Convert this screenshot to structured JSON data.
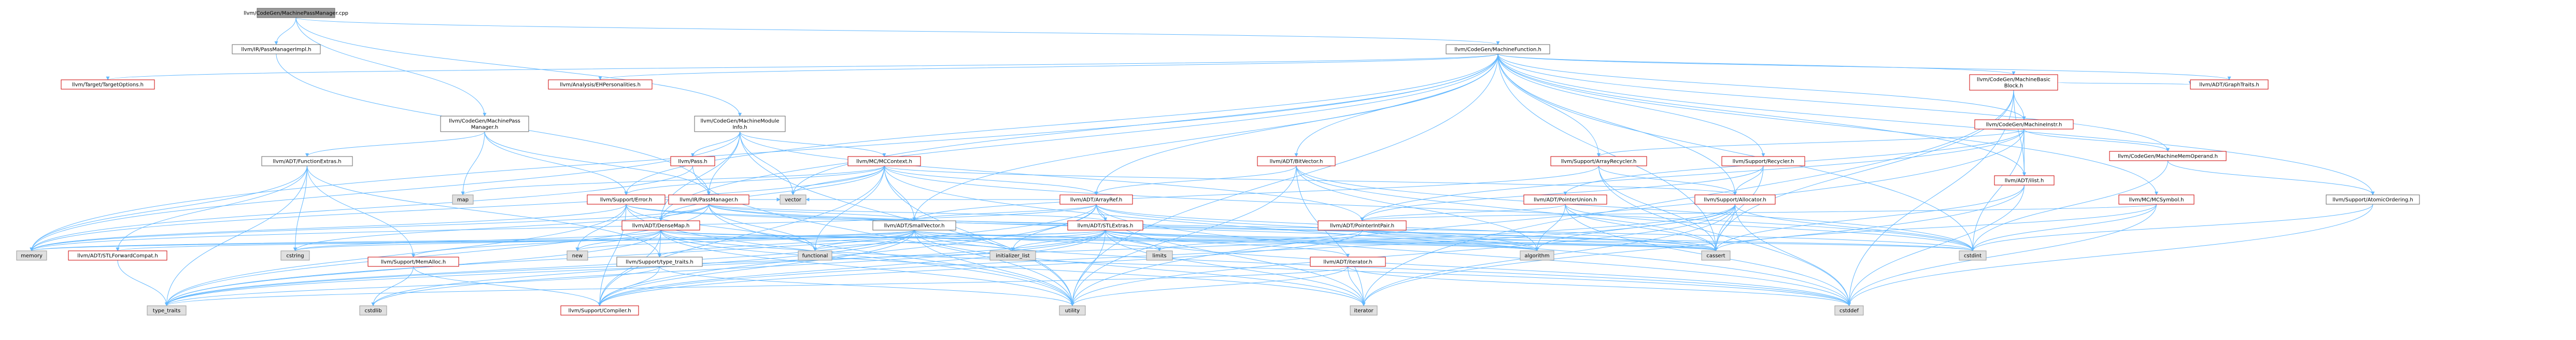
{
  "colors": {
    "root_fill": "#999999",
    "root_border": "#666666",
    "normal_border": "#666666",
    "header_border": "#cc0000",
    "external_fill": "#e0e0e0",
    "external_border": "#999999",
    "edge": "#63b8ff"
  },
  "nodes": [
    {
      "id": "root",
      "label": "llvm/CodeGen/MachinePassManager.cpp",
      "kind": "root"
    },
    {
      "id": "mf",
      "label": "llvm/CodeGen/MachineFunction.h",
      "kind": "normal"
    },
    {
      "id": "irpm_impl",
      "label": "llvm/IR/PassManagerImpl.h",
      "kind": "normal"
    },
    {
      "id": "target_opts",
      "label": "llvm/Target/TargetOptions.h",
      "kind": "header"
    },
    {
      "id": "eh_pers",
      "label": "llvm/Analysis/EHPersonalities.h",
      "kind": "header"
    },
    {
      "id": "mbb",
      "label": "llvm/CodeGen/MachineBasic\nBlock.h",
      "kind": "header"
    },
    {
      "id": "graph_traits",
      "label": "llvm/ADT/GraphTraits.h",
      "kind": "header"
    },
    {
      "id": "cg_mpm",
      "label": "llvm/CodeGen/MachinePass\nManager.h",
      "kind": "normal"
    },
    {
      "id": "cg_mmi",
      "label": "llvm/CodeGen/MachineModule\nInfo.h",
      "kind": "normal"
    },
    {
      "id": "mi",
      "label": "llvm/CodeGen/MachineInstr.h",
      "kind": "header"
    },
    {
      "id": "mmo",
      "label": "llvm/CodeGen/MachineMemOperand.h",
      "kind": "header"
    },
    {
      "id": "atomic_ord",
      "label": "llvm/Support/AtomicOrdering.h",
      "kind": "normal"
    },
    {
      "id": "func_extras",
      "label": "llvm/ADT/FunctionExtras.h",
      "kind": "normal"
    },
    {
      "id": "pass_h",
      "label": "llvm/Pass.h",
      "kind": "header"
    },
    {
      "id": "mc_ctx",
      "label": "llvm/MC/MCContext.h",
      "kind": "header"
    },
    {
      "id": "bitvector",
      "label": "llvm/ADT/BitVector.h",
      "kind": "header"
    },
    {
      "id": "array_recycler",
      "label": "llvm/Support/ArrayRecycler.h",
      "kind": "header"
    },
    {
      "id": "recycler",
      "label": "llvm/Support/Recycler.h",
      "kind": "header"
    },
    {
      "id": "ilist_h",
      "label": "llvm/ADT/ilist.h",
      "kind": "header"
    },
    {
      "id": "mc_symbol",
      "label": "llvm/MC/MCSymbol.h",
      "kind": "header"
    },
    {
      "id": "map",
      "label": "map",
      "kind": "external"
    },
    {
      "id": "support_error",
      "label": "llvm/Support/Error.h",
      "kind": "header"
    },
    {
      "id": "ir_pm",
      "label": "llvm/IR/PassManager.h",
      "kind": "header"
    },
    {
      "id": "vector",
      "label": "vector",
      "kind": "external"
    },
    {
      "id": "pointer_union",
      "label": "llvm/ADT/PointerUnion.h",
      "kind": "header"
    },
    {
      "id": "allocator",
      "label": "llvm/Support/Allocator.h",
      "kind": "header"
    },
    {
      "id": "array_ref",
      "label": "llvm/ADT/ArrayRef.h",
      "kind": "header"
    },
    {
      "id": "dense_map",
      "label": "llvm/ADT/DenseMap.h",
      "kind": "header"
    },
    {
      "id": "small_vector",
      "label": "llvm/ADT/SmallVector.h",
      "kind": "normal"
    },
    {
      "id": "stl_extras",
      "label": "llvm/ADT/STLExtras.h",
      "kind": "header"
    },
    {
      "id": "ptr_int_pair",
      "label": "llvm/ADT/PointerIntPair.h",
      "kind": "header"
    },
    {
      "id": "memory",
      "label": "memory",
      "kind": "external"
    },
    {
      "id": "stl_fwd_compat",
      "label": "llvm/ADT/STLForwardCompat.h",
      "kind": "header"
    },
    {
      "id": "cstring",
      "label": "cstring",
      "kind": "external"
    },
    {
      "id": "new",
      "label": "new",
      "kind": "external"
    },
    {
      "id": "mem_alloc",
      "label": "llvm/Support/MemAlloc.h",
      "kind": "header"
    },
    {
      "id": "type_traits_s",
      "label": "llvm/Support/type_traits.h",
      "kind": "normal"
    },
    {
      "id": "functional",
      "label": "functional",
      "kind": "external"
    },
    {
      "id": "initializer_list",
      "label": "initializer_list",
      "kind": "external"
    },
    {
      "id": "limits",
      "label": "limits",
      "kind": "external"
    },
    {
      "id": "adt_iterator",
      "label": "llvm/ADT/iterator.h",
      "kind": "header"
    },
    {
      "id": "algorithm",
      "label": "algorithm",
      "kind": "external"
    },
    {
      "id": "cassert",
      "label": "cassert",
      "kind": "external"
    },
    {
      "id": "cstdint",
      "label": "cstdint",
      "kind": "external"
    },
    {
      "id": "type_traits",
      "label": "type_traits",
      "kind": "external"
    },
    {
      "id": "cstdlib",
      "label": "cstdlib",
      "kind": "external"
    },
    {
      "id": "compiler",
      "label": "llvm/Support/Compiler.h",
      "kind": "header"
    },
    {
      "id": "utility",
      "label": "utility",
      "kind": "external"
    },
    {
      "id": "iterator",
      "label": "iterator",
      "kind": "external"
    },
    {
      "id": "cstddef",
      "label": "cstddef",
      "kind": "external"
    }
  ],
  "edges": [
    [
      "root",
      "mf"
    ],
    [
      "root",
      "irpm_impl"
    ],
    [
      "root",
      "cg_mpm"
    ],
    [
      "root",
      "cg_mmi"
    ],
    [
      "mf",
      "target_opts"
    ],
    [
      "mf",
      "eh_pers"
    ],
    [
      "mf",
      "mbb"
    ],
    [
      "mf",
      "graph_traits"
    ],
    [
      "mf",
      "mi"
    ],
    [
      "mf",
      "mmo"
    ],
    [
      "mf",
      "atomic_ord"
    ],
    [
      "mf",
      "bitvector"
    ],
    [
      "mf",
      "array_recycler"
    ],
    [
      "mf",
      "recycler"
    ],
    [
      "mf",
      "ilist_h"
    ],
    [
      "mf",
      "mc_symbol"
    ],
    [
      "mf",
      "allocator"
    ],
    [
      "mf",
      "array_ref"
    ],
    [
      "mf",
      "dense_map"
    ],
    [
      "mf",
      "small_vector"
    ],
    [
      "mf",
      "cassert"
    ],
    [
      "mf",
      "cstdint"
    ],
    [
      "mf",
      "memory"
    ],
    [
      "mf",
      "utility"
    ],
    [
      "mf",
      "vector"
    ],
    [
      "mf",
      "support_error"
    ],
    [
      "mbb",
      "graph_traits"
    ],
    [
      "mbb",
      "ilist_h"
    ],
    [
      "mbb",
      "mi"
    ],
    [
      "mbb",
      "iterator"
    ],
    [
      "mbb",
      "cassert"
    ],
    [
      "mbb",
      "cstddef"
    ],
    [
      "mi",
      "mmo"
    ],
    [
      "mi",
      "ilist_h"
    ],
    [
      "mi",
      "array_recycler"
    ],
    [
      "mi",
      "pointer_union"
    ],
    [
      "mi",
      "ptr_int_pair"
    ],
    [
      "mi",
      "cstdint"
    ],
    [
      "mi",
      "utility"
    ],
    [
      "mmo",
      "atomic_ord"
    ],
    [
      "mmo",
      "cstdint"
    ],
    [
      "cg_mpm",
      "func_extras"
    ],
    [
      "cg_mpm",
      "support_error"
    ],
    [
      "cg_mpm",
      "ir_pm"
    ],
    [
      "cg_mpm",
      "map"
    ],
    [
      "cg_mmi",
      "pass_h"
    ],
    [
      "cg_mmi",
      "mc_ctx"
    ],
    [
      "cg_mmi",
      "ir_pm"
    ],
    [
      "cg_mmi",
      "dense_map"
    ],
    [
      "cg_mmi",
      "ptr_int_pair"
    ],
    [
      "cg_mmi",
      "memory"
    ],
    [
      "cg_mmi",
      "utility"
    ],
    [
      "cg_mmi",
      "vector"
    ],
    [
      "irpm_impl",
      "ir_pm"
    ],
    [
      "func_extras",
      "memory"
    ],
    [
      "func_extras",
      "stl_fwd_compat"
    ],
    [
      "func_extras",
      "mem_alloc"
    ],
    [
      "func_extras",
      "type_traits_s"
    ],
    [
      "func_extras",
      "cstring"
    ],
    [
      "func_extras",
      "type_traits"
    ],
    [
      "mc_ctx",
      "map"
    ],
    [
      "mc_ctx",
      "vector"
    ],
    [
      "mc_ctx",
      "support_error"
    ],
    [
      "mc_ctx",
      "dense_map"
    ],
    [
      "mc_ctx",
      "small_vector"
    ],
    [
      "mc_ctx",
      "array_ref"
    ],
    [
      "mc_ctx",
      "allocator"
    ],
    [
      "mc_ctx",
      "cstddef"
    ],
    [
      "mc_ctx",
      "cstdint"
    ],
    [
      "mc_ctx",
      "memory"
    ],
    [
      "mc_ctx",
      "functional"
    ],
    [
      "mc_ctx",
      "utility"
    ],
    [
      "mc_ctx",
      "compiler"
    ],
    [
      "mc_ctx",
      "string_fake"
    ],
    [
      "bitvector",
      "array_ref"
    ],
    [
      "bitvector",
      "iterator"
    ],
    [
      "bitvector",
      "algorithm"
    ],
    [
      "bitvector",
      "cassert"
    ],
    [
      "bitvector",
      "utility"
    ],
    [
      "bitvector",
      "cstdint"
    ],
    [
      "array_recycler",
      "allocator"
    ],
    [
      "array_recycler",
      "small_vector"
    ],
    [
      "array_recycler",
      "cassert"
    ],
    [
      "array_recycler",
      "cstddef"
    ],
    [
      "recycler",
      "allocator"
    ],
    [
      "recycler",
      "cassert"
    ],
    [
      "recycler",
      "ptr_int_pair"
    ],
    [
      "ilist_h",
      "cassert"
    ],
    [
      "ilist_h",
      "cstddef"
    ],
    [
      "ilist_h",
      "iterator"
    ],
    [
      "mc_symbol",
      "ptr_int_pair"
    ],
    [
      "mc_symbol",
      "cassert"
    ],
    [
      "mc_symbol",
      "cstddef"
    ],
    [
      "mc_symbol",
      "cstdint"
    ],
    [
      "support_error",
      "cassert"
    ],
    [
      "support_error",
      "cstdint"
    ],
    [
      "support_error",
      "memory"
    ],
    [
      "support_error",
      "new"
    ],
    [
      "support_error",
      "type_traits"
    ],
    [
      "support_error",
      "vector"
    ],
    [
      "support_error",
      "functional"
    ],
    [
      "support_error",
      "utility"
    ],
    [
      "support_error",
      "compiler"
    ],
    [
      "ir_pm",
      "dense_map"
    ],
    [
      "ir_pm",
      "small_vector"
    ],
    [
      "ir_pm",
      "stl_extras"
    ],
    [
      "ir_pm",
      "algorithm"
    ],
    [
      "ir_pm",
      "cassert"
    ],
    [
      "ir_pm",
      "cstring"
    ],
    [
      "ir_pm",
      "list_fake"
    ],
    [
      "ir_pm",
      "memory"
    ],
    [
      "ir_pm",
      "vector"
    ],
    [
      "ir_pm",
      "type_traits"
    ],
    [
      "ir_pm",
      "utility"
    ],
    [
      "ir_pm",
      "functional"
    ],
    [
      "pointer_union",
      "ptr_int_pair"
    ],
    [
      "pointer_union",
      "algorithm"
    ],
    [
      "pointer_union",
      "cassert"
    ],
    [
      "pointer_union",
      "cstddef"
    ],
    [
      "pointer_union",
      "cstdint"
    ],
    [
      "allocator",
      "cassert"
    ],
    [
      "allocator",
      "cstddef"
    ],
    [
      "allocator",
      "cstdint"
    ],
    [
      "allocator",
      "iterator"
    ],
    [
      "allocator",
      "utility"
    ],
    [
      "allocator",
      "algorithm"
    ],
    [
      "allocator",
      "compiler"
    ],
    [
      "allocator",
      "type_traits"
    ],
    [
      "array_ref",
      "small_vector"
    ],
    [
      "array_ref",
      "stl_extras"
    ],
    [
      "array_ref",
      "algorithm"
    ],
    [
      "array_ref",
      "cassert"
    ],
    [
      "array_ref",
      "cstddef"
    ],
    [
      "array_ref",
      "initializer_list"
    ],
    [
      "array_ref",
      "iterator"
    ],
    [
      "array_ref",
      "memory"
    ],
    [
      "array_ref",
      "type_traits"
    ],
    [
      "array_ref",
      "vector"
    ],
    [
      "array_ref",
      "compiler"
    ],
    [
      "dense_map",
      "mem_alloc"
    ],
    [
      "dense_map",
      "type_traits_s"
    ],
    [
      "dense_map",
      "algorithm"
    ],
    [
      "dense_map",
      "cassert"
    ],
    [
      "dense_map",
      "cstddef"
    ],
    [
      "dense_map",
      "cstring"
    ],
    [
      "dense_map",
      "initializer_list"
    ],
    [
      "dense_map",
      "iterator"
    ],
    [
      "dense_map",
      "new"
    ],
    [
      "dense_map",
      "type_traits"
    ],
    [
      "dense_map",
      "utility"
    ],
    [
      "dense_map",
      "compiler"
    ],
    [
      "small_vector",
      "compiler"
    ],
    [
      "small_vector",
      "type_traits_s"
    ],
    [
      "small_vector",
      "algorithm"
    ],
    [
      "small_vector",
      "cassert"
    ],
    [
      "small_vector",
      "cstddef"
    ],
    [
      "small_vector",
      "cstdlib"
    ],
    [
      "small_vector",
      "cstring"
    ],
    [
      "small_vector",
      "functional"
    ],
    [
      "small_vector",
      "initializer_list"
    ],
    [
      "small_vector",
      "iterator"
    ],
    [
      "small_vector",
      "limits"
    ],
    [
      "small_vector",
      "memory"
    ],
    [
      "small_vector",
      "new"
    ],
    [
      "small_vector",
      "type_traits"
    ],
    [
      "small_vector",
      "utility"
    ],
    [
      "stl_extras",
      "stl_fwd_compat"
    ],
    [
      "stl_extras",
      "adt_iterator"
    ],
    [
      "stl_extras",
      "algorithm"
    ],
    [
      "stl_extras",
      "cassert"
    ],
    [
      "stl_extras",
      "cstddef"
    ],
    [
      "stl_extras",
      "cstdint"
    ],
    [
      "stl_extras",
      "cstdlib"
    ],
    [
      "stl_extras",
      "functional"
    ],
    [
      "stl_extras",
      "initializer_list"
    ],
    [
      "stl_extras",
      "iterator"
    ],
    [
      "stl_extras",
      "limits"
    ],
    [
      "stl_extras",
      "memory"
    ],
    [
      "stl_extras",
      "type_traits"
    ],
    [
      "stl_extras",
      "utility"
    ],
    [
      "stl_extras",
      "compiler"
    ],
    [
      "ptr_int_pair",
      "cassert"
    ],
    [
      "ptr_int_pair",
      "cstdint"
    ],
    [
      "ptr_int_pair",
      "limits"
    ],
    [
      "ptr_int_pair",
      "compiler"
    ],
    [
      "stl_fwd_compat",
      "type_traits"
    ],
    [
      "mem_alloc",
      "cstdlib"
    ],
    [
      "mem_alloc",
      "compiler"
    ],
    [
      "type_traits_s",
      "type_traits"
    ],
    [
      "type_traits_s",
      "utility"
    ],
    [
      "type_traits_s",
      "compiler"
    ],
    [
      "adt_iterator",
      "cstddef"
    ],
    [
      "adt_iterator",
      "iterator"
    ],
    [
      "adt_iterator",
      "type_traits"
    ],
    [
      "adt_iterator",
      "utility"
    ],
    [
      "pass_h",
      "memory"
    ],
    [
      "pass_h",
      "utility"
    ],
    [
      "atomic_ord",
      "cstddef"
    ],
    [
      "atomic_ord",
      "cstdint"
    ]
  ]
}
